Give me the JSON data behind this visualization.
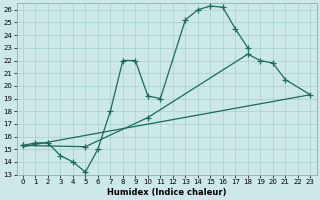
{
  "xlabel": "Humidex (Indice chaleur)",
  "bg_color": "#cce8e8",
  "line_color": "#1a6b5a",
  "xlim": [
    -0.5,
    23.5
  ],
  "ylim": [
    13,
    26.5
  ],
  "xticks": [
    0,
    1,
    2,
    3,
    4,
    5,
    6,
    7,
    8,
    9,
    10,
    11,
    12,
    13,
    14,
    15,
    16,
    17,
    18,
    19,
    20,
    21,
    22,
    23
  ],
  "yticks": [
    13,
    14,
    15,
    16,
    17,
    18,
    19,
    20,
    21,
    22,
    23,
    24,
    25,
    26
  ],
  "line1_x": [
    0,
    1,
    2,
    3,
    4,
    5,
    6,
    7,
    8,
    9,
    10,
    11,
    13,
    14,
    15,
    16,
    17,
    18
  ],
  "line1_y": [
    15.3,
    15.5,
    15.5,
    14.5,
    14.0,
    13.2,
    15.0,
    18.0,
    22.0,
    22.0,
    19.2,
    19.0,
    25.2,
    26.0,
    26.3,
    26.2,
    24.5,
    23.0
  ],
  "line2_x": [
    0,
    5,
    10,
    18,
    19,
    20,
    21,
    23
  ],
  "line2_y": [
    15.3,
    15.2,
    17.5,
    22.5,
    22.0,
    21.8,
    20.5,
    19.3
  ],
  "line3_x": [
    0,
    23
  ],
  "line3_y": [
    15.2,
    19.3
  ]
}
